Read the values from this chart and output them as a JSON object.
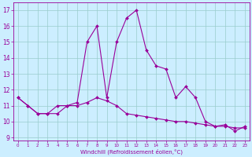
{
  "xlabel": "Windchill (Refroidissement éolien,°C)",
  "hours": [
    0,
    1,
    2,
    3,
    4,
    5,
    6,
    7,
    8,
    9,
    10,
    11,
    12,
    13,
    14,
    15,
    16,
    17,
    18,
    19,
    20,
    21,
    22,
    23
  ],
  "temp_line": [
    11.5,
    11.0,
    10.5,
    10.5,
    10.5,
    11.0,
    11.0,
    11.2,
    11.5,
    11.3,
    11.0,
    10.5,
    10.4,
    10.3,
    10.2,
    10.1,
    10.0,
    10.0,
    9.9,
    9.8,
    9.7,
    9.7,
    9.6,
    9.6
  ],
  "wind_line": [
    11.5,
    11.0,
    10.5,
    10.5,
    11.0,
    11.0,
    11.2,
    15.0,
    16.0,
    11.5,
    15.0,
    16.5,
    17.0,
    14.5,
    13.5,
    13.3,
    11.5,
    12.2,
    11.5,
    10.0,
    9.7,
    9.8,
    9.4,
    9.7
  ],
  "line_color": "#990099",
  "bg_color": "#cceeff",
  "grid_color": "#99cccc",
  "ylim": [
    8.8,
    17.5
  ],
  "yticks": [
    9,
    10,
    11,
    12,
    13,
    14,
    15,
    16,
    17
  ],
  "xlim": [
    -0.5,
    23.5
  ],
  "xticks": [
    0,
    1,
    2,
    3,
    4,
    5,
    6,
    7,
    8,
    9,
    10,
    11,
    12,
    13,
    14,
    15,
    16,
    17,
    18,
    19,
    20,
    21,
    22,
    23
  ]
}
